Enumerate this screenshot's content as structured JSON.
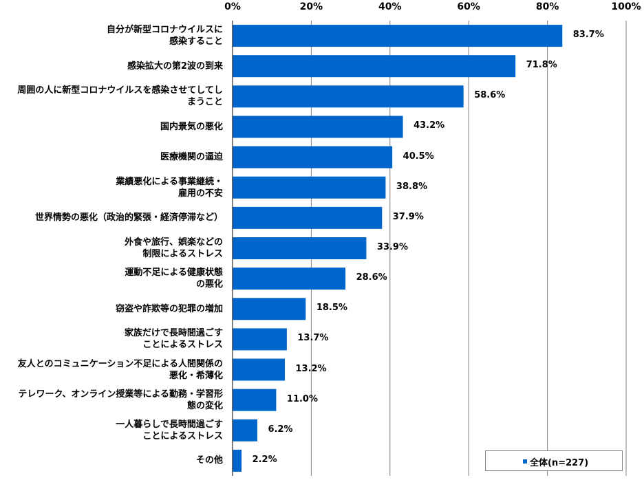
{
  "chart_data": {
    "type": "bar",
    "orientation": "horizontal",
    "categories": [
      "自分が新型コロナウイルスに\n感染すること",
      "感染拡大の第2波の到来",
      "周囲の人に新型コロナウイルスを感染させてしてし\nまうこと",
      "国内景気の悪化",
      "医療機関の逼迫",
      "業績悪化による事業継続・\n雇用の不安",
      "世界情勢の悪化（政治的緊張・経済停滞など）",
      "外食や旅行、娯楽などの\n制限によるストレス",
      "運動不足による健康状態\nの悪化",
      "窃盗や詐欺等の犯罪の増加",
      "家族だけで長時間過ごす\nことによるストレス",
      "友人とのコミュニケーション不足による人間関係の\n悪化・希薄化",
      "テレワーク、オンライン授業等による勤務・学習形\n態の変化",
      "一人暮らしで長時間過ごす\nことによるストレス",
      "その他"
    ],
    "series": [
      {
        "name": "全体(n=227)",
        "values": [
          83.7,
          71.8,
          58.6,
          43.2,
          40.5,
          38.8,
          37.9,
          33.9,
          28.6,
          18.5,
          13.7,
          13.2,
          11.0,
          6.2,
          2.2
        ],
        "labels": [
          "83.7%",
          "71.8%",
          "58.6%",
          "43.2%",
          "40.5%",
          "38.8%",
          "37.9%",
          "33.9%",
          "28.6%",
          "18.5%",
          "13.7%",
          "13.2%",
          "11.0%",
          "6.2%",
          "2.2%"
        ]
      }
    ],
    "xlim": [
      0,
      100
    ],
    "xticks": [
      "0%",
      "20%",
      "40%",
      "60%",
      "80%",
      "100%"
    ],
    "grid": true,
    "legend_position": "bottom-right",
    "bar_color": "#0066cc",
    "gridline_color": "#808080"
  }
}
